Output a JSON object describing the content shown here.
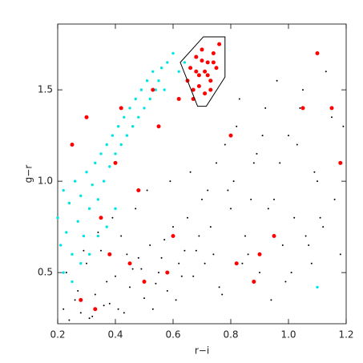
{
  "chart_data": {
    "type": "scatter",
    "xlabel": "r−i",
    "ylabel": "g−r",
    "xlim": [
      0.2,
      1.2
    ],
    "ylim": [
      0.22,
      1.86
    ],
    "xticks": [
      0.2,
      0.4,
      0.6,
      0.8,
      {
        "value": 1,
        "label": "1.0"
      },
      1.2
    ],
    "yticks": [
      0.5,
      {
        "value": 1,
        "label": "1.0"
      },
      1.5
    ],
    "grid": false,
    "polygon": {
      "color": "#000000",
      "x": [
        0.625,
        0.705,
        0.78,
        0.78,
        0.715,
        0.685
      ],
      "y": [
        1.65,
        1.79,
        1.79,
        1.57,
        1.41,
        1.41
      ]
    },
    "series": [
      {
        "color": "#000000",
        "size": 1,
        "x": [
          0.22,
          0.25,
          0.28,
          0.3,
          0.33,
          0.35,
          0.38,
          0.4,
          0.42,
          0.45,
          0.48,
          0.5,
          0.52,
          0.55,
          0.58,
          0.6,
          0.62,
          0.65,
          0.68,
          0.7,
          0.23,
          0.26,
          0.29,
          0.31,
          0.34,
          0.37,
          0.39,
          0.41,
          0.44,
          0.47,
          0.49,
          0.51,
          0.54,
          0.57,
          0.59,
          0.63,
          0.66,
          0.69,
          0.72,
          0.75,
          0.74,
          0.78,
          0.8,
          0.82,
          0.85,
          0.88,
          0.9,
          0.92,
          0.95,
          0.98,
          1.0,
          1.02,
          1.05,
          1.08,
          1.1,
          1.12,
          1.15,
          1.18,
          0.76,
          0.79,
          0.83,
          0.86,
          0.89,
          0.93,
          0.96,
          0.99,
          1.03,
          1.06,
          1.09,
          1.13,
          1.16,
          1.19,
          0.24,
          0.27,
          0.32,
          0.36,
          0.43,
          0.46,
          0.53,
          0.56,
          0.61,
          0.64,
          0.67,
          0.71,
          0.73,
          0.77,
          0.81,
          0.84,
          0.87,
          0.91,
          0.94,
          0.97,
          1.01,
          1.04,
          1.07,
          1.11
        ],
        "y": [
          0.3,
          0.45,
          0.28,
          0.55,
          0.38,
          0.62,
          0.33,
          0.48,
          0.7,
          0.42,
          0.58,
          0.36,
          0.65,
          0.5,
          0.4,
          0.75,
          0.55,
          0.8,
          0.62,
          0.9,
          0.5,
          0.35,
          0.62,
          0.25,
          0.72,
          0.45,
          0.8,
          0.3,
          0.6,
          0.85,
          0.52,
          0.95,
          0.44,
          0.68,
          1.0,
          0.48,
          1.05,
          0.7,
          0.95,
          1.1,
          0.6,
          1.2,
          0.85,
          1.3,
          0.7,
          1.1,
          0.5,
          1.4,
          0.9,
          0.65,
          1.25,
          0.8,
          1.5,
          0.55,
          1.0,
          0.75,
          1.35,
          0.6,
          0.42,
          0.95,
          1.45,
          0.6,
          1.15,
          0.85,
          1.55,
          0.45,
          1.2,
          0.7,
          1.05,
          1.6,
          0.9,
          1.3,
          0.24,
          0.4,
          0.26,
          0.32,
          0.28,
          0.52,
          0.3,
          0.58,
          0.35,
          0.62,
          0.48,
          0.55,
          0.75,
          0.38,
          1.0,
          0.55,
          0.9,
          1.25,
          0.35,
          1.1,
          0.5,
          1.4,
          0.65,
          0.8
        ]
      },
      {
        "color": "#00e5e5",
        "size": 1.7,
        "x": [
          0.2,
          0.21,
          0.22,
          0.23,
          0.24,
          0.25,
          0.26,
          0.27,
          0.28,
          0.29,
          0.3,
          0.31,
          0.32,
          0.33,
          0.34,
          0.35,
          0.36,
          0.37,
          0.38,
          0.39,
          0.4,
          0.41,
          0.42,
          0.43,
          0.44,
          0.45,
          0.46,
          0.47,
          0.48,
          0.49,
          0.5,
          0.51,
          0.52,
          0.53,
          0.54,
          0.55,
          0.56,
          0.57,
          0.58,
          0.6,
          0.62,
          0.64,
          0.22,
          0.25,
          0.28,
          0.31,
          0.34,
          0.37,
          0.4,
          1.1
        ],
        "y": [
          0.8,
          0.65,
          0.95,
          0.72,
          0.88,
          0.6,
          1.0,
          0.78,
          0.92,
          0.7,
          1.05,
          0.85,
          0.98,
          1.1,
          0.9,
          1.15,
          1.0,
          1.2,
          1.08,
          1.25,
          1.15,
          1.3,
          1.2,
          1.35,
          1.25,
          1.4,
          1.3,
          1.45,
          1.35,
          1.5,
          1.4,
          1.55,
          1.45,
          1.6,
          1.5,
          1.55,
          1.62,
          1.5,
          1.65,
          1.7,
          1.6,
          1.65,
          0.5,
          0.45,
          0.55,
          0.6,
          0.7,
          0.75,
          0.85,
          0.42
        ]
      },
      {
        "color": "#ff0000",
        "size": 2.5,
        "x": [
          0.65,
          0.66,
          0.67,
          0.68,
          0.69,
          0.7,
          0.71,
          0.72,
          0.73,
          0.74,
          0.75,
          0.76,
          0.67,
          0.69,
          0.71,
          0.73,
          0.7,
          0.72,
          0.68,
          0.74,
          0.25,
          0.3,
          0.35,
          0.4,
          0.45,
          0.5,
          0.55,
          0.6,
          0.28,
          0.38,
          0.48,
          0.58,
          0.62,
          0.82,
          0.88,
          0.95,
          1.05,
          1.1,
          1.15,
          1.18,
          0.9,
          0.8,
          0.42,
          0.33,
          0.53
        ],
        "y": [
          1.55,
          1.62,
          1.5,
          1.68,
          1.58,
          1.72,
          1.6,
          1.65,
          1.55,
          1.7,
          1.62,
          1.75,
          1.45,
          1.52,
          1.48,
          1.5,
          1.66,
          1.58,
          1.6,
          1.65,
          1.2,
          1.35,
          0.8,
          1.1,
          0.55,
          0.45,
          1.3,
          0.7,
          0.35,
          0.6,
          0.95,
          0.5,
          1.45,
          0.55,
          0.45,
          0.7,
          1.4,
          1.7,
          1.4,
          1.1,
          0.6,
          1.25,
          1.4,
          0.3,
          1.5
        ]
      }
    ]
  }
}
